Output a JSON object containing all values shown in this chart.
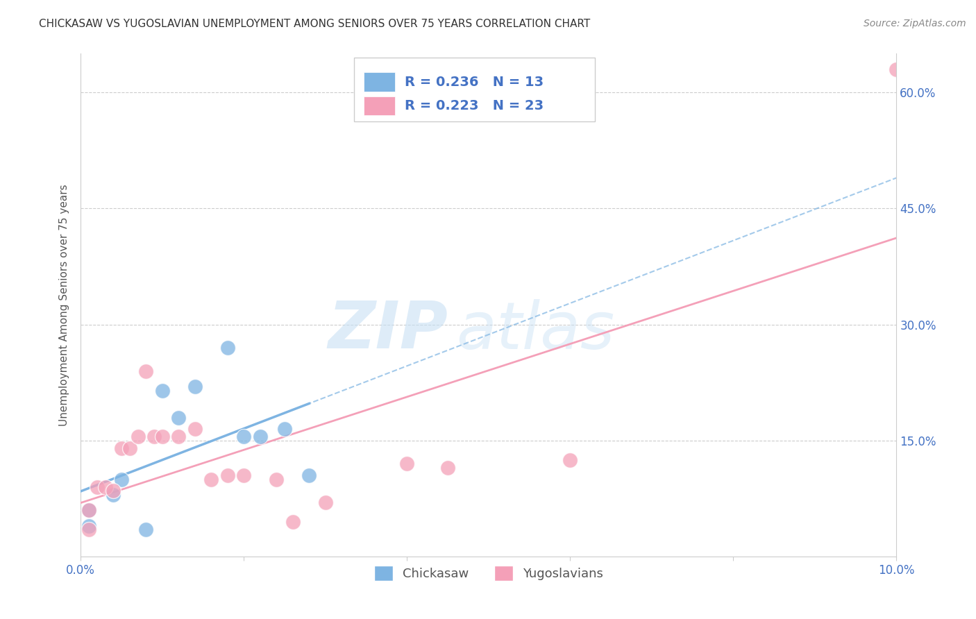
{
  "title": "CHICKASAW VS YUGOSLAVIAN UNEMPLOYMENT AMONG SENIORS OVER 75 YEARS CORRELATION CHART",
  "source": "Source: ZipAtlas.com",
  "ylabel": "Unemployment Among Seniors over 75 years",
  "xlim": [
    0.0,
    0.1
  ],
  "ylim": [
    0.0,
    0.65
  ],
  "right_yticks": [
    0.15,
    0.3,
    0.45,
    0.6
  ],
  "right_ytick_labels": [
    "15.0%",
    "30.0%",
    "45.0%",
    "60.0%"
  ],
  "bottom_xticks": [
    0.0,
    0.02,
    0.04,
    0.06,
    0.08,
    0.1
  ],
  "bottom_xtick_labels": [
    "0.0%",
    "",
    "",
    "",
    "",
    "10.0%"
  ],
  "chickasaw_R": 0.236,
  "chickasaw_N": 13,
  "yugoslavian_R": 0.223,
  "yugoslavian_N": 23,
  "chickasaw_color": "#7EB4E2",
  "yugoslavian_color": "#F4A0B8",
  "legend_text_color": "#4472C4",
  "chickasaw_scatter_x": [
    0.001,
    0.001,
    0.004,
    0.005,
    0.008,
    0.01,
    0.012,
    0.014,
    0.018,
    0.02,
    0.022,
    0.025,
    0.028
  ],
  "chickasaw_scatter_y": [
    0.06,
    0.04,
    0.08,
    0.1,
    0.035,
    0.215,
    0.18,
    0.22,
    0.27,
    0.155,
    0.155,
    0.165,
    0.105
  ],
  "yugoslavian_scatter_x": [
    0.001,
    0.001,
    0.002,
    0.003,
    0.004,
    0.005,
    0.006,
    0.007,
    0.008,
    0.009,
    0.01,
    0.012,
    0.014,
    0.016,
    0.018,
    0.02,
    0.024,
    0.026,
    0.03,
    0.04,
    0.045,
    0.06,
    0.1
  ],
  "yugoslavian_scatter_y": [
    0.06,
    0.035,
    0.09,
    0.09,
    0.085,
    0.14,
    0.14,
    0.155,
    0.24,
    0.155,
    0.155,
    0.155,
    0.165,
    0.1,
    0.105,
    0.105,
    0.1,
    0.045,
    0.07,
    0.12,
    0.115,
    0.125,
    0.63
  ],
  "watermark_zip": "ZIP",
  "watermark_atlas": "atlas",
  "marker_size": 250,
  "background_color": "#FFFFFF",
  "grid_color": "#CCCCCC"
}
